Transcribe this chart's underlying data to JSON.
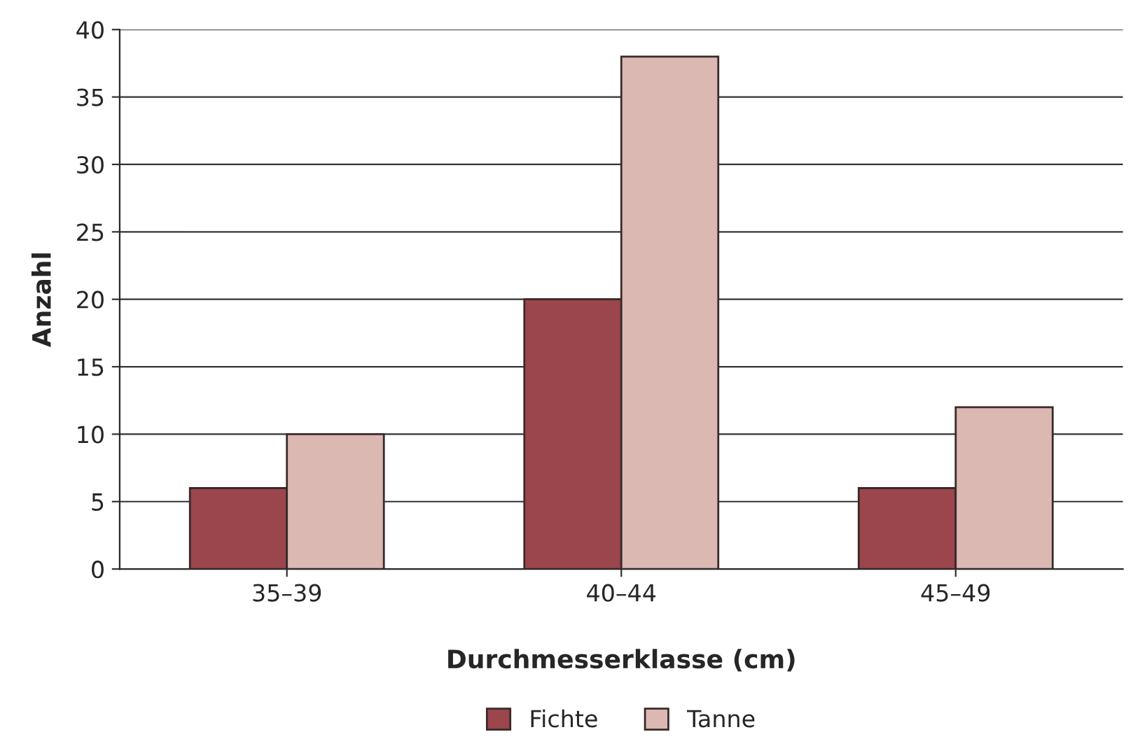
{
  "chart_data": {
    "type": "bar",
    "xlabel": "Durchmesserklasse (cm)",
    "ylabel": "Anzahl",
    "categories": [
      "35–39",
      "40–44",
      "45–49"
    ],
    "series": [
      {
        "name": "Fichte",
        "color": "#9b464c",
        "values": [
          6,
          20,
          6
        ]
      },
      {
        "name": "Tanne",
        "color": "#dcb8b2",
        "values": [
          10,
          38,
          12
        ]
      }
    ],
    "ylim": [
      0,
      40
    ],
    "yticks": [
      0,
      5,
      10,
      15,
      20,
      25,
      30,
      35,
      40
    ],
    "grid": "y",
    "legend": "bottom"
  }
}
